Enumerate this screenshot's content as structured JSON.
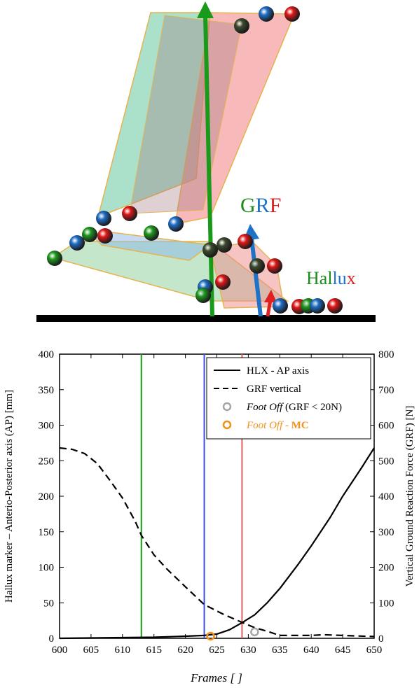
{
  "figure_top": {
    "grf_label": {
      "parts": [
        {
          "text": "G",
          "color": "#1a8c1a"
        },
        {
          "text": "R",
          "color": "#1e73c8"
        },
        {
          "text": "F",
          "color": "#e02020"
        }
      ]
    },
    "hallux_label": {
      "parts": [
        {
          "text": "Hal",
          "color": "#1a8c1a"
        },
        {
          "text": "lu",
          "color": "#1e73c8"
        },
        {
          "text": "x",
          "color": "#e02020"
        }
      ]
    }
  },
  "chart_data": {
    "type": "line",
    "xlabel": "Frames [ ]",
    "ylabel_left": "Hallux marker – Anterio-Posterior axis (AP) [mm]",
    "ylabel_right": "Vertical Ground Reaction Force (GRF) [N]",
    "xlim": [
      600,
      650
    ],
    "ylim_left": [
      0,
      400
    ],
    "ylim_right": [
      0,
      800
    ],
    "x_ticks": [
      600,
      605,
      610,
      615,
      620,
      625,
      630,
      635,
      640,
      645,
      650
    ],
    "y_ticks_left": [
      0,
      50,
      100,
      150,
      200,
      250,
      300,
      350,
      400
    ],
    "y_ticks_right": [
      0,
      100,
      200,
      300,
      400,
      500,
      600,
      700,
      800
    ],
    "grid": false,
    "legend_position": "top-right",
    "series": [
      {
        "name": "HLX - AP axis",
        "axis": "left",
        "style": "solid",
        "color": "#000000",
        "x": [
          600,
          605,
          610,
          615,
          620,
          623,
          625,
          627,
          629,
          631,
          633,
          635,
          638,
          640,
          643,
          645,
          648,
          650
        ],
        "y": [
          0,
          0.5,
          1,
          1.5,
          3,
          4,
          6,
          12,
          22,
          33,
          50,
          70,
          105,
          130,
          170,
          200,
          240,
          268
        ]
      },
      {
        "name": "GRF vertical",
        "axis": "right",
        "style": "dashed",
        "color": "#000000",
        "x": [
          600,
          602,
          604,
          606,
          608,
          610,
          612,
          613,
          615,
          617,
          620,
          623,
          626,
          629,
          631,
          633,
          635,
          640,
          642,
          645,
          650
        ],
        "y": [
          536,
          532,
          520,
          492,
          445,
          395,
          330,
          290,
          235,
          196,
          145,
          95,
          68,
          45,
          30,
          20,
          8,
          8,
          10,
          8,
          5
        ]
      },
      {
        "name": "Foot Off (GRF < 20N)",
        "type": "marker",
        "color": "#a6a6a6",
        "x": [
          631
        ],
        "y_left": [
          9
        ]
      },
      {
        "name": "Foot Off - MC",
        "type": "marker",
        "color": "#f39019",
        "x": [
          624
        ],
        "y_left": [
          3
        ]
      }
    ],
    "vlines": [
      {
        "x": 613,
        "color": "#1a9a1a"
      },
      {
        "x": 623,
        "color": "#3b4fe0"
      },
      {
        "x": 629,
        "color": "#e06060"
      }
    ],
    "legend": [
      {
        "key": "hlx",
        "style": "solid",
        "parts": [
          {
            "text": "HLX - AP axis",
            "italic": false,
            "bold": false,
            "color": "#000000"
          }
        ]
      },
      {
        "key": "grf",
        "style": "dashed",
        "parts": [
          {
            "text": "GRF vertical",
            "italic": false,
            "bold": false,
            "color": "#000000"
          }
        ]
      },
      {
        "key": "fo",
        "style": "marker-gray",
        "parts": [
          {
            "text": "Foot Off",
            "italic": true,
            "bold": false,
            "color": "#000000"
          },
          {
            "text": " (GRF < 20N)",
            "italic": false,
            "bold": false,
            "color": "#000000"
          }
        ]
      },
      {
        "key": "fomc",
        "style": "marker-orange",
        "parts": [
          {
            "text": "Foot Off",
            "italic": true,
            "bold": false,
            "color": "#f39019"
          },
          {
            "text": "  - ",
            "italic": false,
            "bold": false,
            "color": "#f39019"
          },
          {
            "text": "MC",
            "italic": false,
            "bold": true,
            "color": "#f39019"
          }
        ]
      }
    ]
  }
}
